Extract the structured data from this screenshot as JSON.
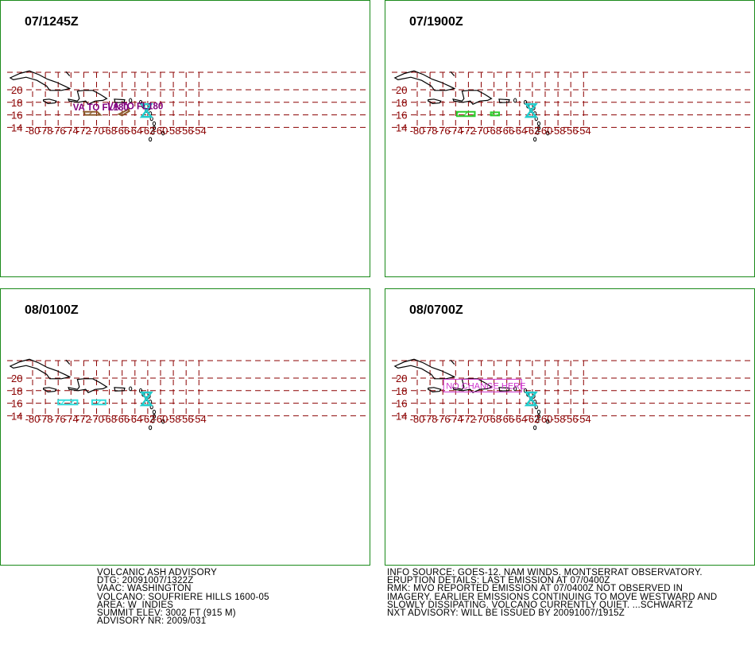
{
  "panels": [
    {
      "title": "07/1245Z",
      "labels": [
        "VA TO FL180",
        "VA TO FL180"
      ],
      "ash_color": "#8b5a2b",
      "ash_areas": [
        [
          [
            -71.8,
            16.0
          ],
          [
            -69.4,
            16.0
          ],
          [
            -69.9,
            16.5
          ],
          [
            -72.0,
            16.5
          ]
        ],
        [
          [
            -66.5,
            16.1
          ],
          [
            -65.0,
            16.9
          ],
          [
            -64.9,
            16.6
          ],
          [
            -66.0,
            15.9
          ]
        ]
      ]
    },
    {
      "title": "07/1900Z",
      "labels": [],
      "ash_color": "#2ecc2e",
      "ash_areas": [
        [
          [
            -73.8,
            15.8
          ],
          [
            -71.0,
            15.8
          ],
          [
            -71.0,
            16.5
          ],
          [
            -73.8,
            16.5
          ]
        ],
        [
          [
            -68.5,
            15.9
          ],
          [
            -67.2,
            15.9
          ],
          [
            -67.2,
            16.4
          ],
          [
            -68.5,
            16.4
          ]
        ]
      ]
    },
    {
      "title": "08/0100Z",
      "labels": [],
      "ash_color": "#33dddd",
      "ash_areas": [
        [
          [
            -76.0,
            15.8
          ],
          [
            -73.0,
            15.8
          ],
          [
            -73.0,
            16.5
          ],
          [
            -76.0,
            16.5
          ]
        ],
        [
          [
            -70.7,
            15.8
          ],
          [
            -68.6,
            15.8
          ],
          [
            -68.6,
            16.5
          ],
          [
            -70.7,
            16.5
          ]
        ]
      ]
    },
    {
      "title": "08/0700Z",
      "labels": [
        "NO CHANGE HERE"
      ],
      "ash_color": "#cc33cc",
      "ash_areas": []
    }
  ],
  "map": {
    "lon_ticks": [
      "-80",
      "-78",
      "-76",
      "-74",
      "-72",
      "-70",
      "-68",
      "-66",
      "-64",
      "-62",
      "-60",
      "-58",
      "-56",
      "-54"
    ],
    "lat_ticks": [
      "20",
      "18",
      "16",
      "14"
    ],
    "grid_color": "#8b0000",
    "coast_color": "#000000",
    "volcano_color": "#22cccc"
  },
  "advisory_left": [
    "VOLCANIC ASH ADVISORY",
    "DTG: 20091007/1322Z",
    "VAAC: WASHINGTON",
    "VOLCANO: SOUFRIERE HILLS 1600-05",
    "AREA: W_INDIES",
    "SUMMIT ELEV: 3002 FT (915 M)",
    "ADVISORY NR: 2009/031"
  ],
  "advisory_right": [
    "INFO SOURCE: GOES-12. NAM WINDS. MONTSERRAT OBSERVATORY.",
    "ERUPTION DETAILS: LAST EMISSION AT 07/0400Z",
    "RMK: MVO REPORTED EMISSION AT 07/0400Z NOT OBSERVED IN",
    "IMAGERY. EARLIER EMISSIONS CONTINUING TO MOVE WESTWARD AND",
    "SLOWLY DISSIPATING. VOLCANO CURRENTLY QUIET. ...SCHWARTZ",
    "NXT ADVISORY: WILL BE ISSUED BY 20091007/1915Z"
  ]
}
